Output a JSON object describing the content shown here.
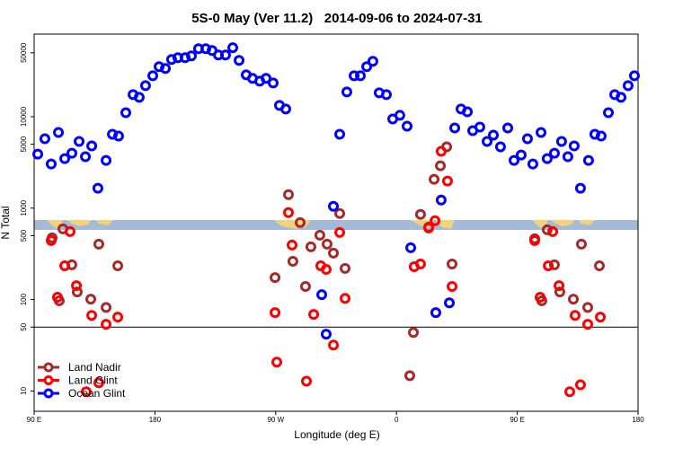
{
  "chart_data": {
    "type": "scatter",
    "title": "5S-0 May (Ver 11.2)   2014-09-06 to 2024-07-31",
    "x_label": "Longitude (deg E)",
    "y_label": "N Total",
    "log_y": true,
    "xlim": [
      90,
      540
    ],
    "ylim": [
      6,
      80000
    ],
    "xticks": [
      {
        "value": 90,
        "label": "90 E"
      },
      180,
      {
        "value": 270,
        "label": "90 W"
      },
      {
        "value": 360,
        "label": "0"
      },
      {
        "value": 450,
        "label": "90 E"
      },
      {
        "value": 540,
        "label": "180"
      }
    ],
    "yticks": [
      10,
      50,
      100,
      500,
      1000,
      5000,
      10000,
      50000
    ],
    "reference_line": 50,
    "legend": "bottom-left",
    "series": [
      {
        "name": "Land Nadir",
        "color": "#a52a2a",
        "x": [
          103.4,
          108.7,
          111.4,
          118.1,
          122.1,
          132.2,
          138.2,
          143.6,
          152.3,
          269.5,
          279.5,
          282.8,
          288.2,
          292.2,
          296.2,
          302.9,
          308.3,
          313.0,
          317.7,
          321.7,
          369.9,
          372.6,
          377.9,
          384.0,
          388.0,
          392.7,
          397.4,
          401.4,
          463.0,
          468.3,
          472.3,
          477.7,
          481.7,
          491.8,
          497.8,
          502.5,
          511.2
        ],
        "values": [
          473,
          97,
          593,
          240,
          121,
          101,
          404,
          82,
          234,
          174,
          1405,
          262,
          695,
          139,
          377,
          506,
          404,
          322,
          873,
          219,
          14.7,
          43.7,
          853,
          621,
          2066,
          2904,
          4680,
          245,
          462,
          97,
          580,
          240,
          121,
          101,
          404,
          82,
          234
        ]
      },
      {
        "name": "Land Glint",
        "color": "#ff0000",
        "x": [
          102.7,
          107.4,
          112.8,
          116.8,
          121.5,
          128.8,
          132.9,
          138.2,
          143.6,
          152.3,
          269.5,
          270.8,
          279.5,
          282.2,
          292.9,
          298.3,
          303.6,
          307.6,
          313.0,
          317.7,
          321.7,
          373.2,
          377.9,
          384.0,
          388.7,
          393.3,
          398.0,
          401.4,
          463.0,
          467.0,
          473.1,
          476.4,
          481.1,
          489.1,
          493.1,
          497.1,
          502.5,
          511.9
        ],
        "values": [
          442,
          106,
          234,
          554,
          142,
          9.8,
          67,
          12.3,
          53.6,
          64.3,
          72,
          20.7,
          893,
          395,
          12.8,
          68.8,
          234,
          214,
          31.8,
          542,
          103,
          229,
          245,
          607,
          728,
          4180,
          1976,
          139,
          442,
          106,
          234,
          554,
          142,
          9.8,
          67,
          11.7,
          53.6,
          64.3
        ]
      },
      {
        "name": "Ocean Glint",
        "color": "#0000ff",
        "x": [
          92.7,
          98.0,
          102.7,
          108.1,
          112.8,
          118.1,
          123.5,
          128.2,
          132.9,
          137.5,
          143.6,
          148.3,
          152.9,
          158.3,
          163.7,
          168.3,
          173.0,
          178.4,
          183.1,
          187.8,
          192.4,
          197.1,
          202.5,
          207.2,
          212.5,
          217.9,
          222.6,
          227.3,
          232.6,
          238.0,
          242.7,
          248.0,
          252.7,
          258.1,
          262.8,
          268.1,
          272.8,
          277.5,
          304.3,
          307.6,
          313.0,
          317.7,
          323.0,
          328.4,
          333.1,
          337.8,
          342.4,
          347.1,
          352.5,
          357.2,
          362.5,
          367.9,
          370.6,
          389.3,
          393.3,
          399.4,
          403.4,
          408.1,
          412.8,
          416.8,
          422.1,
          427.5,
          432.2,
          437.5,
          442.9,
          447.6,
          452.9,
          457.6,
          461.6,
          467.7,
          472.3,
          477.7,
          483.0,
          487.7,
          492.4,
          497.1,
          503.1,
          507.8,
          512.5,
          517.9,
          522.6,
          527.3,
          532.6,
          537.3
        ],
        "values": [
          3900,
          5740,
          3040,
          6730,
          3480,
          3990,
          5360,
          3650,
          4790,
          1650,
          3330,
          6430,
          6140,
          11070,
          17420,
          16290,
          21880,
          28050,
          35240,
          33650,
          42270,
          44160,
          44160,
          46240,
          55460,
          55460,
          52970,
          47310,
          47310,
          56750,
          41300,
          28710,
          26240,
          24490,
          26240,
          23390,
          13280,
          12130,
          113,
          41.8,
          1047,
          6430,
          18660,
          28050,
          28050,
          35240,
          40360,
          18240,
          17420,
          9450,
          10350,
          7880,
          369,
          72,
          1227,
          92,
          7530,
          12130,
          11320,
          7030,
          7710,
          5360,
          6280,
          4680,
          7530,
          3330,
          3810,
          5740,
          3040,
          6730,
          3480,
          3990,
          5360,
          3650,
          4790,
          1650,
          3330,
          6430,
          6140,
          11070,
          17420,
          16290,
          21880,
          28050
        ]
      }
    ]
  }
}
